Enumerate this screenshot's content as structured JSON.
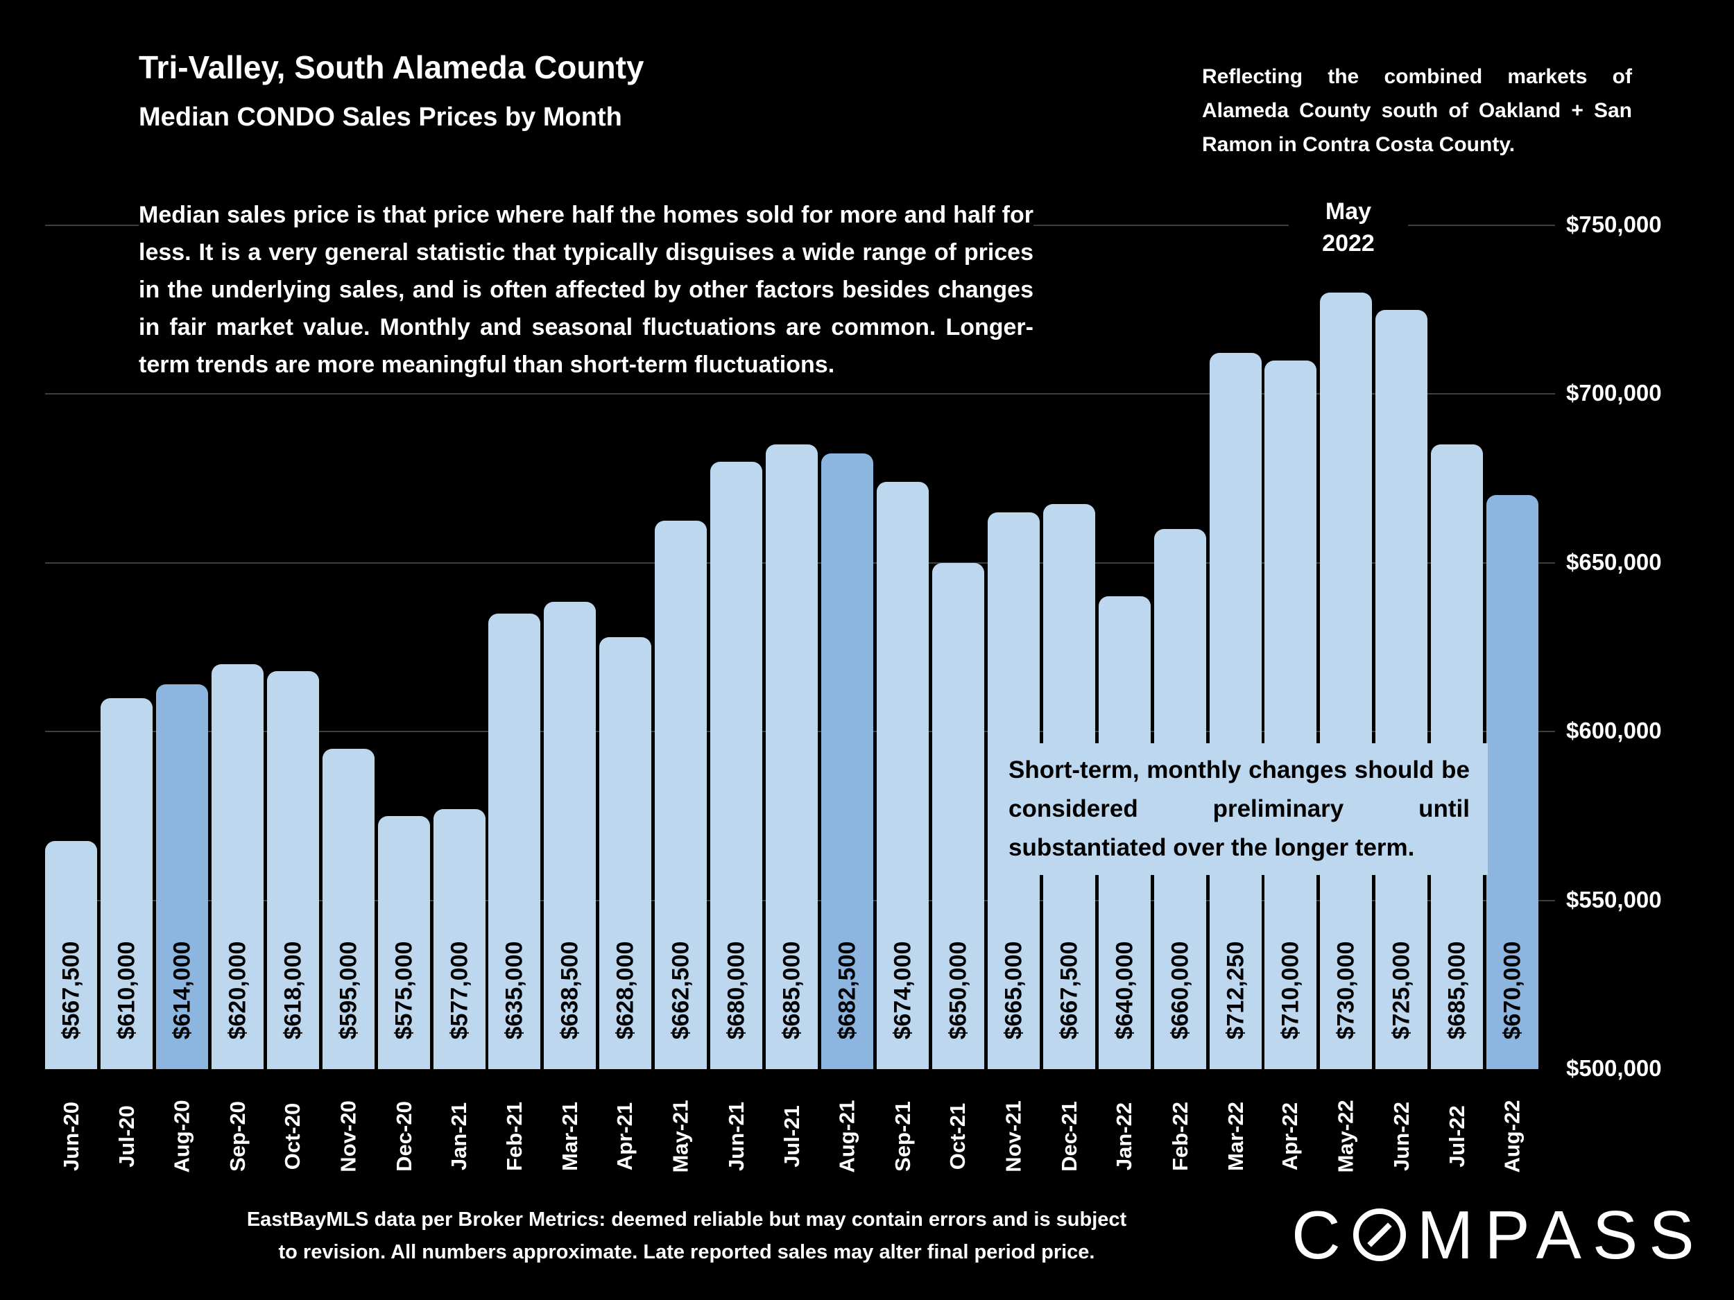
{
  "header": {
    "title": "Tri-Valley, South Alameda County",
    "subtitle": "Median CONDO Sales Prices by Month",
    "note_right": "Reflecting the combined markets of Alameda County south of Oakland + San Ramon in Contra Costa County."
  },
  "description": "Median sales price is that price where half the homes sold for more and half for less. It is a very general statistic that typically disguises a wide range of prices in the underlying sales, and is often affected by other factors besides changes in fair market value. Monthly and seasonal fluctuations are common. Longer-term trends are more meaningful than short-term fluctuations.",
  "annotations": {
    "peak_line1": "May",
    "peak_line2": "2022",
    "callout": "Short-term, monthly changes should be considered preliminary until substantiated over the longer term."
  },
  "footer": {
    "disclaimer_line1": "EastBayMLS data per Broker Metrics:  deemed reliable but may contain errors and is subject",
    "disclaimer_line2": "to revision. All numbers approximate. Late reported sales may alter final period price.",
    "logo_prefix": "C",
    "logo_suffix": "MPASS"
  },
  "colors": {
    "background": "#000000",
    "bar": "#BDD7EE",
    "bar_highlight": "#8CB5E0",
    "gridline": "#3E3E3E",
    "text_light": "#FFFFFF",
    "text_dark": "#000000"
  },
  "chart_data": {
    "type": "bar",
    "title": "Median CONDO Sales Prices by Month",
    "categories": [
      "Jun-20",
      "Jul-20",
      "Aug-20",
      "Sep-20",
      "Oct-20",
      "Nov-20",
      "Dec-20",
      "Jan-21",
      "Feb-21",
      "Mar-21",
      "Apr-21",
      "May-21",
      "Jun-21",
      "Jul-21",
      "Aug-21",
      "Sep-21",
      "Oct-21",
      "Nov-21",
      "Dec-21",
      "Jan-22",
      "Feb-22",
      "Mar-22",
      "Apr-22",
      "May-22",
      "Jun-22",
      "Jul-22",
      "Aug-22"
    ],
    "values": [
      567500,
      610000,
      614000,
      620000,
      618000,
      595000,
      575000,
      577000,
      635000,
      638500,
      628000,
      662500,
      680000,
      685000,
      682500,
      674000,
      650000,
      665000,
      667500,
      640000,
      660000,
      712250,
      710000,
      730000,
      725000,
      685000,
      670000
    ],
    "bar_labels": [
      "$567,500",
      "$610,000",
      "$614,000",
      "$620,000",
      "$618,000",
      "$595,000",
      "$575,000",
      "$577,000",
      "$635,000",
      "$638,500",
      "$628,000",
      "$662,500",
      "$680,000",
      "$685,000",
      "$682,500",
      "$674,000",
      "$650,000",
      "$665,000",
      "$667,500",
      "$640,000",
      "$660,000",
      "$712,250",
      "$710,000",
      "$730,000",
      "$725,000",
      "$685,000",
      "$670,000"
    ],
    "highlighted_categories": [
      "Aug-20",
      "Aug-21",
      "Aug-22"
    ],
    "peak_annotation_category": "May-22",
    "y_ticks": [
      "$750,000",
      "$700,000",
      "$650,000",
      "$600,000",
      "$550,000",
      "$500,000"
    ],
    "ylim": [
      500000,
      750000
    ],
    "y_tick_step": 50000,
    "xlabel": "",
    "ylabel": "",
    "grid": "horizontal",
    "legend": "none"
  }
}
